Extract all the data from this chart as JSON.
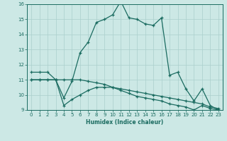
{
  "xlabel": "Humidex (Indice chaleur)",
  "xlim": [
    -0.5,
    23.5
  ],
  "ylim": [
    9,
    16
  ],
  "yticks": [
    9,
    10,
    11,
    12,
    13,
    14,
    15,
    16
  ],
  "xticks": [
    0,
    1,
    2,
    3,
    4,
    5,
    6,
    7,
    8,
    9,
    10,
    11,
    12,
    13,
    14,
    15,
    16,
    17,
    18,
    19,
    20,
    21,
    22,
    23
  ],
  "bg_color": "#cce8e5",
  "line_color": "#1a6b60",
  "grid_color": "#aacfcc",
  "series1_x": [
    0,
    1,
    2,
    3,
    4,
    5,
    6,
    7,
    8,
    9,
    10,
    11,
    12,
    13,
    14,
    15,
    16,
    17,
    18,
    19,
    20,
    21,
    22,
    23
  ],
  "series1_y": [
    11.5,
    11.5,
    11.5,
    11.0,
    9.8,
    10.9,
    12.8,
    13.5,
    14.8,
    15.0,
    15.3,
    16.2,
    15.1,
    15.0,
    14.7,
    14.6,
    15.1,
    11.3,
    11.5,
    10.4,
    9.6,
    10.4,
    9.3,
    9.0
  ],
  "series2_x": [
    0,
    1,
    2,
    3,
    4,
    5,
    6,
    7,
    8,
    9,
    10,
    11,
    12,
    13,
    14,
    15,
    16,
    17,
    18,
    19,
    20,
    21,
    22,
    23
  ],
  "series2_y": [
    11.0,
    11.0,
    11.0,
    11.0,
    11.0,
    11.0,
    11.0,
    10.9,
    10.8,
    10.7,
    10.5,
    10.4,
    10.3,
    10.2,
    10.1,
    10.0,
    9.9,
    9.8,
    9.7,
    9.6,
    9.5,
    9.4,
    9.2,
    9.1
  ],
  "series3_x": [
    0,
    1,
    2,
    3,
    4,
    5,
    6,
    7,
    8,
    9,
    10,
    11,
    12,
    13,
    14,
    15,
    16,
    17,
    18,
    19,
    20,
    21,
    22,
    23
  ],
  "series3_y": [
    11.0,
    11.0,
    11.0,
    11.0,
    9.3,
    9.7,
    10.0,
    10.3,
    10.5,
    10.5,
    10.5,
    10.3,
    10.1,
    9.9,
    9.8,
    9.7,
    9.6,
    9.4,
    9.3,
    9.2,
    9.0,
    9.3,
    9.1,
    9.0
  ]
}
